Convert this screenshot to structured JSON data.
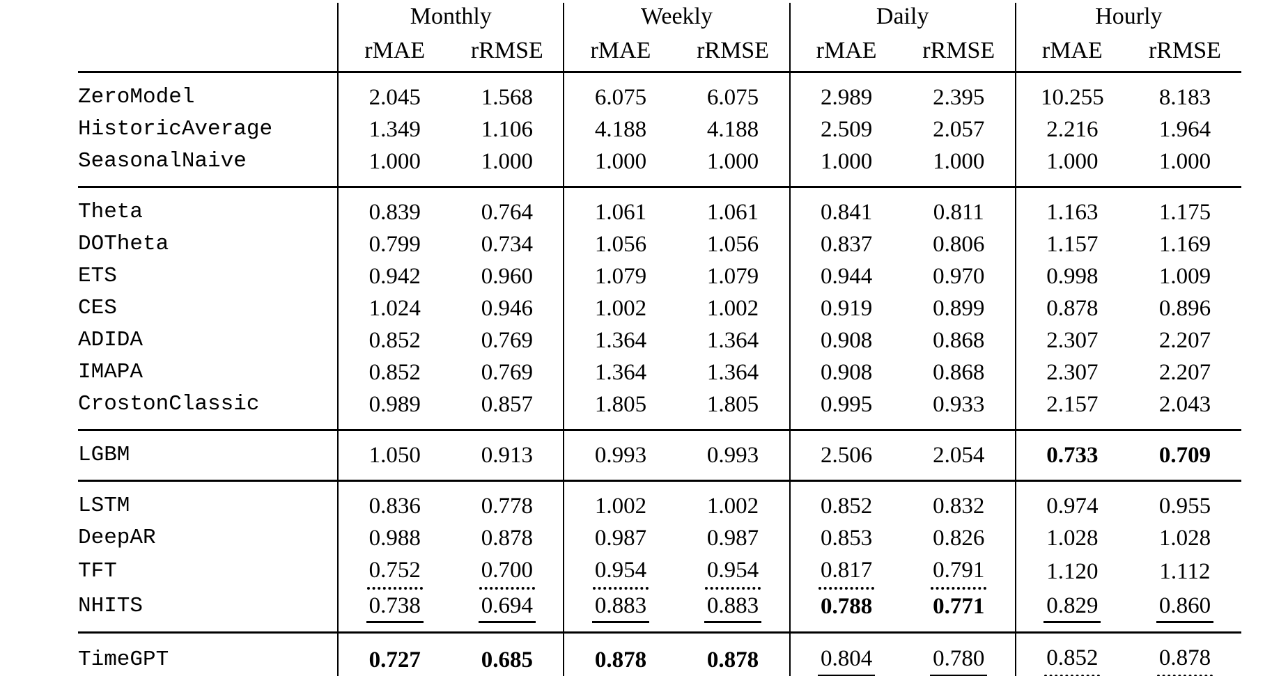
{
  "colors": {
    "text": "#000000",
    "background": "#ffffff",
    "rules": "#000000"
  },
  "table": {
    "groups": [
      {
        "label": "Monthly",
        "sub": [
          "rMAE",
          "rRMSE"
        ]
      },
      {
        "label": "Weekly",
        "sub": [
          "rMAE",
          "rRMSE"
        ]
      },
      {
        "label": "Daily",
        "sub": [
          "rMAE",
          "rRMSE"
        ]
      },
      {
        "label": "Hourly",
        "sub": [
          "rMAE",
          "rRMSE"
        ]
      }
    ],
    "blocks": [
      {
        "rows": [
          {
            "model": "ZeroModel",
            "values": [
              {
                "v": "2.045"
              },
              {
                "v": "1.568"
              },
              {
                "v": "6.075"
              },
              {
                "v": "6.075"
              },
              {
                "v": "2.989"
              },
              {
                "v": "2.395"
              },
              {
                "v": "10.255"
              },
              {
                "v": "8.183"
              }
            ]
          },
          {
            "model": "HistoricAverage",
            "values": [
              {
                "v": "1.349"
              },
              {
                "v": "1.106"
              },
              {
                "v": "4.188"
              },
              {
                "v": "4.188"
              },
              {
                "v": "2.509"
              },
              {
                "v": "2.057"
              },
              {
                "v": "2.216"
              },
              {
                "v": "1.964"
              }
            ]
          },
          {
            "model": "SeasonalNaive",
            "values": [
              {
                "v": "1.000"
              },
              {
                "v": "1.000"
              },
              {
                "v": "1.000"
              },
              {
                "v": "1.000"
              },
              {
                "v": "1.000"
              },
              {
                "v": "1.000"
              },
              {
                "v": "1.000"
              },
              {
                "v": "1.000"
              }
            ]
          }
        ]
      },
      {
        "rows": [
          {
            "model": "Theta",
            "values": [
              {
                "v": "0.839"
              },
              {
                "v": "0.764"
              },
              {
                "v": "1.061"
              },
              {
                "v": "1.061"
              },
              {
                "v": "0.841"
              },
              {
                "v": "0.811"
              },
              {
                "v": "1.163"
              },
              {
                "v": "1.175"
              }
            ]
          },
          {
            "model": "DOTheta",
            "values": [
              {
                "v": "0.799"
              },
              {
                "v": "0.734"
              },
              {
                "v": "1.056"
              },
              {
                "v": "1.056"
              },
              {
                "v": "0.837"
              },
              {
                "v": "0.806"
              },
              {
                "v": "1.157"
              },
              {
                "v": "1.169"
              }
            ]
          },
          {
            "model": "ETS",
            "values": [
              {
                "v": "0.942"
              },
              {
                "v": "0.960"
              },
              {
                "v": "1.079"
              },
              {
                "v": "1.079"
              },
              {
                "v": "0.944"
              },
              {
                "v": "0.970"
              },
              {
                "v": "0.998"
              },
              {
                "v": "1.009"
              }
            ]
          },
          {
            "model": "CES",
            "values": [
              {
                "v": "1.024"
              },
              {
                "v": "0.946"
              },
              {
                "v": "1.002"
              },
              {
                "v": "1.002"
              },
              {
                "v": "0.919"
              },
              {
                "v": "0.899"
              },
              {
                "v": "0.878"
              },
              {
                "v": "0.896"
              }
            ]
          },
          {
            "model": "ADIDA",
            "values": [
              {
                "v": "0.852"
              },
              {
                "v": "0.769"
              },
              {
                "v": "1.364"
              },
              {
                "v": "1.364"
              },
              {
                "v": "0.908"
              },
              {
                "v": "0.868"
              },
              {
                "v": "2.307"
              },
              {
                "v": "2.207"
              }
            ]
          },
          {
            "model": "IMAPA",
            "values": [
              {
                "v": "0.852"
              },
              {
                "v": "0.769"
              },
              {
                "v": "1.364"
              },
              {
                "v": "1.364"
              },
              {
                "v": "0.908"
              },
              {
                "v": "0.868"
              },
              {
                "v": "2.307"
              },
              {
                "v": "2.207"
              }
            ]
          },
          {
            "model": "CrostonClassic",
            "values": [
              {
                "v": "0.989"
              },
              {
                "v": "0.857"
              },
              {
                "v": "1.805"
              },
              {
                "v": "1.805"
              },
              {
                "v": "0.995"
              },
              {
                "v": "0.933"
              },
              {
                "v": "2.157"
              },
              {
                "v": "2.043"
              }
            ]
          }
        ]
      },
      {
        "rows": [
          {
            "model": "LGBM",
            "values": [
              {
                "v": "1.050"
              },
              {
                "v": "0.913"
              },
              {
                "v": "0.993"
              },
              {
                "v": "0.993"
              },
              {
                "v": "2.506"
              },
              {
                "v": "2.054"
              },
              {
                "v": "0.733",
                "s": "bold"
              },
              {
                "v": "0.709",
                "s": "bold"
              }
            ]
          }
        ]
      },
      {
        "rows": [
          {
            "model": "LSTM",
            "values": [
              {
                "v": "0.836"
              },
              {
                "v": "0.778"
              },
              {
                "v": "1.002"
              },
              {
                "v": "1.002"
              },
              {
                "v": "0.852"
              },
              {
                "v": "0.832"
              },
              {
                "v": "0.974"
              },
              {
                "v": "0.955"
              }
            ]
          },
          {
            "model": "DeepAR",
            "values": [
              {
                "v": "0.988"
              },
              {
                "v": "0.878"
              },
              {
                "v": "0.987"
              },
              {
                "v": "0.987"
              },
              {
                "v": "0.853"
              },
              {
                "v": "0.826"
              },
              {
                "v": "1.028"
              },
              {
                "v": "1.028"
              }
            ]
          },
          {
            "model": "TFT",
            "values": [
              {
                "v": "0.752",
                "s": "dotted"
              },
              {
                "v": "0.700",
                "s": "dotted"
              },
              {
                "v": "0.954",
                "s": "dotted"
              },
              {
                "v": "0.954",
                "s": "dotted"
              },
              {
                "v": "0.817",
                "s": "dotted"
              },
              {
                "v": "0.791",
                "s": "dotted"
              },
              {
                "v": "1.120"
              },
              {
                "v": "1.112"
              }
            ]
          },
          {
            "model": "NHITS",
            "values": [
              {
                "v": "0.738",
                "s": "underline"
              },
              {
                "v": "0.694",
                "s": "underline"
              },
              {
                "v": "0.883",
                "s": "underline"
              },
              {
                "v": "0.883",
                "s": "underline"
              },
              {
                "v": "0.788",
                "s": "bold"
              },
              {
                "v": "0.771",
                "s": "bold"
              },
              {
                "v": "0.829",
                "s": "underline"
              },
              {
                "v": "0.860",
                "s": "underline"
              }
            ]
          }
        ]
      },
      {
        "rows": [
          {
            "model": "TimeGPT",
            "values": [
              {
                "v": "0.727",
                "s": "bold"
              },
              {
                "v": "0.685",
                "s": "bold"
              },
              {
                "v": "0.878",
                "s": "bold"
              },
              {
                "v": "0.878",
                "s": "bold"
              },
              {
                "v": "0.804",
                "s": "underline"
              },
              {
                "v": "0.780",
                "s": "underline"
              },
              {
                "v": "0.852",
                "s": "dotted"
              },
              {
                "v": "0.878",
                "s": "dotted"
              }
            ]
          }
        ]
      }
    ]
  }
}
